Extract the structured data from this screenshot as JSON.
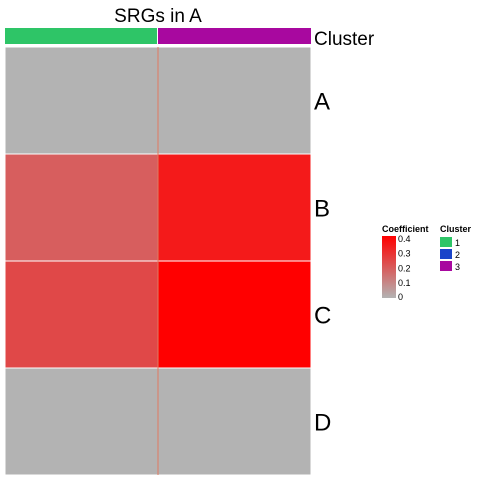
{
  "chart_data": {
    "type": "heatmap",
    "title": "SRGs in A",
    "rows": [
      "A",
      "B",
      "C",
      "D"
    ],
    "columns": [
      {
        "cluster": "1"
      },
      {
        "cluster": "3"
      }
    ],
    "values": [
      [
        0.0,
        0.0
      ],
      [
        0.2,
        0.36
      ],
      [
        0.25,
        0.42
      ],
      [
        0.0,
        0.0
      ]
    ],
    "annotation_label": "Cluster",
    "color_scale": {
      "title": "Coefficient",
      "min": 0,
      "max": 0.42,
      "low_color": "#b3b3b3",
      "high_color": "#ff0000",
      "ticks": [
        "0.4",
        "0.3",
        "0.2",
        "0.1",
        "0"
      ],
      "tick_values": [
        0.4,
        0.3,
        0.2,
        0.1,
        0
      ]
    },
    "cluster_legend": {
      "title": "Cluster",
      "items": [
        {
          "label": "1",
          "color": "#2ec567"
        },
        {
          "label": "2",
          "color": "#1a44c9"
        },
        {
          "label": "3",
          "color": "#a8089f"
        }
      ]
    },
    "legend_position": "right"
  }
}
